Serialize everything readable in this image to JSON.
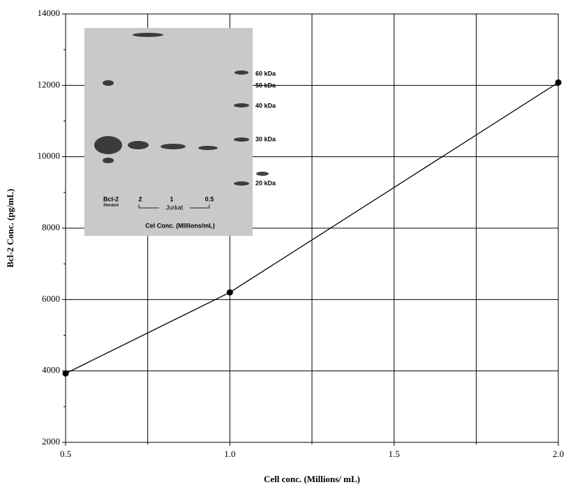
{
  "chart_data": {
    "type": "line",
    "xlabel": "Cell conc. (Millions/ mL)",
    "ylabel": "Bcl-2 Conc. (pg/mL)",
    "series": [
      {
        "color": "#000000",
        "x": [
          0.5,
          1.0,
          2.0
        ],
        "values": [
          3930,
          6200,
          12080
        ]
      }
    ],
    "xlim": [
      0.5,
      2.0
    ],
    "xticks": [
      0.5,
      {
        "value": 1.0,
        "label": "1.0"
      },
      1.5,
      {
        "value": 2.0,
        "label": "2.0"
      }
    ],
    "xminorticks": [
      0.75,
      1.25,
      1.75
    ],
    "ylim": [
      2000,
      14000
    ],
    "yticks": [
      2000,
      4000,
      6000,
      8000,
      10000,
      12000,
      14000
    ],
    "yminorticks": [
      3000,
      5000,
      7000,
      9000,
      11000,
      13000
    ],
    "grid": true,
    "inset_texts": [
      "Bcl-2",
      "Standard",
      "2",
      "1",
      "0.5",
      "Jurkat",
      "Cel  Conc. (Millions/mL)",
      "60 kDa",
      "50 kDa",
      "40 kDa",
      "30 kDa",
      "20 kDa"
    ]
  }
}
